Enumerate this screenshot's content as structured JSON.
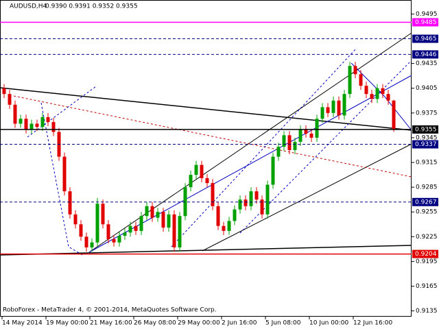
{
  "chart_data": {
    "type": "candlestick",
    "title": "AUDUSD,H4",
    "quote": "0.9390 0.9391 0.9352 0.9355",
    "footer": "RoboForex - MetaTrader 4, © 2001-2014, MetaQuotes Software Corp.",
    "categories": [
      "14 May 2014",
      null,
      null,
      null,
      null,
      null,
      null,
      null,
      "19 May 00:00",
      null,
      null,
      null,
      null,
      null,
      null,
      null,
      "21 May 16:00",
      null,
      null,
      null,
      null,
      null,
      null,
      null,
      "26 May 08:00",
      null,
      null,
      null,
      null,
      null,
      null,
      null,
      "29 May 00:00",
      null,
      null,
      null,
      null,
      null,
      null,
      null,
      "2 Jun 16:00",
      null,
      null,
      null,
      null,
      null,
      null,
      null,
      "5 Jun 08:00",
      null,
      null,
      null,
      null,
      null,
      null,
      null,
      "10 Jun 00:00",
      null,
      null,
      null,
      null,
      null,
      null,
      null,
      "12 Jun 16:00",
      null,
      null,
      null,
      null,
      null,
      null,
      null
    ],
    "open": [
      0.9405,
      0.9398,
      0.9385,
      0.9362,
      0.9368,
      0.9355,
      0.9362,
      0.9358,
      0.937,
      0.9364,
      0.9352,
      0.9322,
      0.928,
      0.9252,
      0.924,
      0.9225,
      0.9212,
      0.9218,
      0.9265,
      0.924,
      0.9222,
      0.9218,
      0.9226,
      0.923,
      0.9238,
      0.9232,
      0.925,
      0.9262,
      0.9248,
      0.9255,
      0.9236,
      0.9252,
      0.9212,
      0.925,
      0.9285,
      0.93,
      0.9312,
      0.9296,
      0.929,
      0.9262,
      0.9238,
      0.9232,
      0.9244,
      0.9258,
      0.927,
      0.9262,
      0.928,
      0.927,
      0.9252,
      0.9288,
      0.9322,
      0.9334,
      0.9348,
      0.933,
      0.934,
      0.9355,
      0.935,
      0.9345,
      0.9368,
      0.9382,
      0.9375,
      0.939,
      0.9372,
      0.9398,
      0.9432,
      0.9422,
      0.9408,
      0.9398,
      0.9392,
      0.9405,
      0.9398,
      0.939
    ],
    "high": [
      0.941,
      0.9403,
      0.939,
      0.9373,
      0.9373,
      0.9367,
      0.9367,
      0.9375,
      0.9375,
      0.9369,
      0.9357,
      0.9327,
      0.9285,
      0.9257,
      0.9245,
      0.923,
      0.9223,
      0.9272,
      0.927,
      0.9245,
      0.9227,
      0.9231,
      0.9235,
      0.9243,
      0.9243,
      0.9255,
      0.9267,
      0.9267,
      0.926,
      0.926,
      0.9257,
      0.9257,
      0.9255,
      0.929,
      0.9305,
      0.9317,
      0.9317,
      0.9301,
      0.9295,
      0.9267,
      0.9243,
      0.9249,
      0.9263,
      0.9275,
      0.9275,
      0.9285,
      0.9285,
      0.9275,
      0.9293,
      0.9327,
      0.9339,
      0.9353,
      0.9353,
      0.9345,
      0.936,
      0.936,
      0.9355,
      0.9373,
      0.9387,
      0.9387,
      0.9395,
      0.9395,
      0.9403,
      0.9437,
      0.9437,
      0.9427,
      0.9413,
      0.9403,
      0.941,
      0.941,
      0.9403,
      0.9391
    ],
    "low": [
      0.9393,
      0.938,
      0.9357,
      0.9357,
      0.935,
      0.935,
      0.9353,
      0.9353,
      0.9359,
      0.9347,
      0.9317,
      0.9275,
      0.9247,
      0.9235,
      0.922,
      0.9207,
      0.9207,
      0.9213,
      0.9235,
      0.9217,
      0.9213,
      0.9213,
      0.9221,
      0.9225,
      0.9227,
      0.9227,
      0.9245,
      0.9243,
      0.9243,
      0.9231,
      0.9231,
      0.9207,
      0.9207,
      0.9245,
      0.928,
      0.9295,
      0.9291,
      0.9285,
      0.9257,
      0.9233,
      0.9227,
      0.9227,
      0.9239,
      0.9253,
      0.9257,
      0.9257,
      0.9265,
      0.9247,
      0.9247,
      0.9283,
      0.9317,
      0.9329,
      0.9325,
      0.9325,
      0.9335,
      0.9345,
      0.934,
      0.934,
      0.9363,
      0.937,
      0.937,
      0.9367,
      0.9367,
      0.9393,
      0.9417,
      0.9403,
      0.9393,
      0.9387,
      0.9387,
      0.9393,
      0.9385,
      0.9352
    ],
    "close": [
      0.9398,
      0.9385,
      0.9362,
      0.9368,
      0.9355,
      0.9362,
      0.9358,
      0.937,
      0.9364,
      0.9352,
      0.9322,
      0.928,
      0.9252,
      0.924,
      0.9225,
      0.9212,
      0.9218,
      0.9265,
      0.924,
      0.9222,
      0.9218,
      0.9226,
      0.923,
      0.9238,
      0.9232,
      0.925,
      0.9262,
      0.9248,
      0.9255,
      0.9236,
      0.9252,
      0.9212,
      0.925,
      0.9285,
      0.93,
      0.9312,
      0.9296,
      0.929,
      0.9262,
      0.9238,
      0.9232,
      0.9244,
      0.9258,
      0.927,
      0.9262,
      0.928,
      0.927,
      0.9252,
      0.9288,
      0.9322,
      0.9334,
      0.9348,
      0.933,
      0.934,
      0.9355,
      0.935,
      0.9345,
      0.9368,
      0.9382,
      0.9375,
      0.939,
      0.9372,
      0.9398,
      0.9432,
      0.9422,
      0.9408,
      0.9398,
      0.9392,
      0.9405,
      0.9398,
      0.939,
      0.9355
    ],
    "up_color": "#00a000",
    "down_color": "#e00000",
    "ylim": [
      0.9128,
      0.9512
    ],
    "yticks": [
      0.9495,
      0.9435,
      0.9405,
      0.9375,
      0.9345,
      0.9315,
      0.9285,
      0.9255,
      0.9225,
      0.9195,
      0.9165,
      0.9135
    ],
    "levels": [
      {
        "value": 0.9485,
        "color": "#ff00ff",
        "dashed": false
      },
      {
        "value": 0.9465,
        "color": "#000080",
        "dashed": true
      },
      {
        "value": 0.9446,
        "color": "#000080",
        "dashed": true
      },
      {
        "value": 0.9355,
        "color": "#000000",
        "dashed": false
      },
      {
        "value": 0.9337,
        "color": "#000080",
        "dashed": true
      },
      {
        "value": 0.9267,
        "color": "#000080",
        "dashed": true
      },
      {
        "value": 0.9204,
        "color": "#e00000",
        "dashed": false
      }
    ]
  }
}
